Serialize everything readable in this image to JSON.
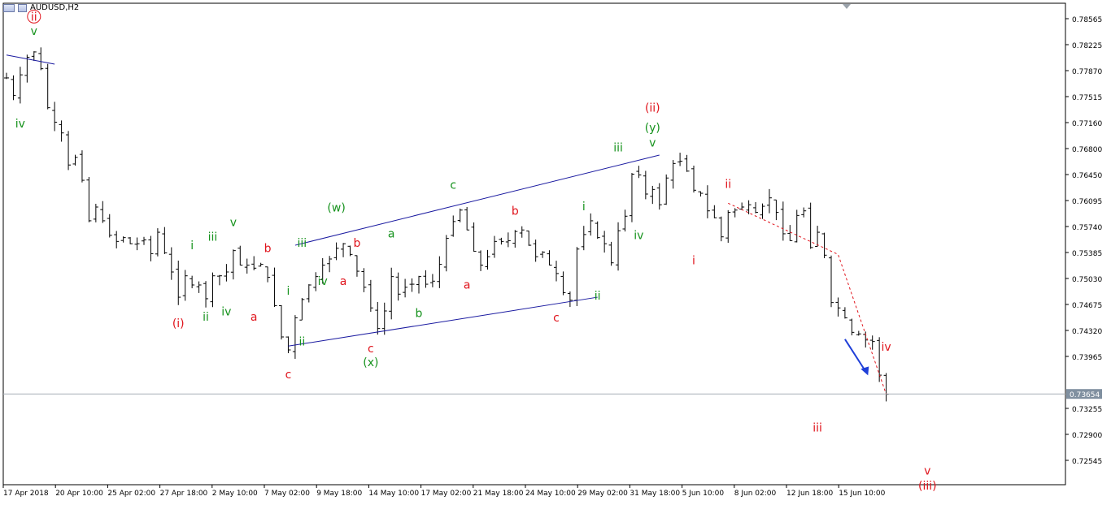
{
  "window": {
    "title": "AUDUSD,H2"
  },
  "colors": {
    "background": "#ffffff",
    "candle": "#000000",
    "trendline": "#1a1aa0",
    "label_red": "#e0141c",
    "label_green": "#15921c",
    "arrow_blue": "#1f3fd8",
    "current_price_line": "#a8b0b8",
    "price_badge_bg": "#8090a0"
  },
  "icons": [
    "chart-window-icon",
    "down-arrow-icon",
    "shift-marker-icon"
  ],
  "chart_data": {
    "type": "candlestick",
    "title": "AUDUSD,H2",
    "symbol": "AUDUSD",
    "timeframe": "H2",
    "current_price": "0.73654",
    "y_axis": {
      "range": [
        0.724,
        0.788
      ],
      "ticks": [
        "0.78565",
        "0.78225",
        "0.77870",
        "0.77515",
        "0.77160",
        "0.76800",
        "0.76450",
        "0.76095",
        "0.75740",
        "0.75385",
        "0.75030",
        "0.74675",
        "0.74320",
        "0.73965",
        "0.73255",
        "0.72900",
        "0.72545"
      ]
    },
    "x_axis": {
      "labels": [
        "17 Apr 2018",
        "20 Apr 10:00",
        "25 Apr 02:00",
        "27 Apr 18:00",
        "2 May 10:00",
        "7 May 02:00",
        "9 May 18:00",
        "14 May 10:00",
        "17 May 02:00",
        "21 May 18:00",
        "24 May 10:00",
        "29 May 02:00",
        "31 May 18:00",
        "5 Jun 10:00",
        "8 Jun 02:00",
        "12 Jun 18:00",
        "15 Jun 10:00"
      ]
    },
    "price_path": [
      0.7779,
      0.7756,
      0.7783,
      0.7806,
      0.7813,
      0.7791,
      0.774,
      0.7721,
      0.7707,
      0.7665,
      0.7675,
      0.7645,
      0.7592,
      0.761,
      0.7592,
      0.7573,
      0.7565,
      0.757,
      0.7562,
      0.7562,
      0.7567,
      0.7549,
      0.7577,
      0.755,
      0.7525,
      0.7492,
      0.752,
      0.7508,
      0.7508,
      0.749,
      0.752,
      0.752,
      0.7525,
      0.7553,
      0.7534,
      0.7534,
      0.753,
      0.7535,
      0.7518,
      0.7481,
      0.744,
      0.7423,
      0.7465,
      0.7489,
      0.7508,
      0.7519,
      0.7534,
      0.7542,
      0.7556,
      0.7562,
      0.7548,
      0.7526,
      0.7505,
      0.7478,
      0.7451,
      0.7474,
      0.7519,
      0.7496,
      0.7505,
      0.7509,
      0.7519,
      0.7509,
      0.7513,
      0.7535,
      0.7569,
      0.7591,
      0.7606,
      0.758,
      0.7552,
      0.7534,
      0.7545,
      0.7565,
      0.7565,
      0.7566,
      0.7578,
      0.758,
      0.756,
      0.7545,
      0.7551,
      0.7534,
      0.7523,
      0.7498,
      0.7488,
      0.7555,
      0.7574,
      0.7592,
      0.757,
      0.7562,
      0.7537,
      0.7579,
      0.7598,
      0.7653,
      0.7652,
      0.7627,
      0.7633,
      0.7613,
      0.7648,
      0.7667,
      0.767,
      0.7657,
      0.7632,
      0.7628,
      0.7605,
      0.7596,
      0.7571,
      0.7603,
      0.7606,
      0.761,
      0.7613,
      0.7603,
      0.7611,
      0.7622,
      0.7603,
      0.7575,
      0.7566,
      0.7599,
      0.7605,
      0.7557,
      0.7577,
      0.7547,
      0.7485,
      0.7478,
      0.7465,
      0.7446,
      0.7444,
      0.7436,
      0.7434,
      0.739,
      0.7365
    ],
    "trendlines": [
      {
        "from": [
          0,
          0.7809
        ],
        "to": [
          7,
          0.7797
        ]
      },
      {
        "from": [
          42,
          0.756
        ],
        "to": [
          95,
          0.7678
        ]
      },
      {
        "from": [
          41,
          0.7428
        ],
        "to": [
          86,
          0.7492
        ]
      }
    ],
    "projection_line": {
      "from": [
        105,
        0.7615
      ],
      "to": [
        121,
        0.7548
      ],
      "to2": [
        128,
        0.7365
      ],
      "style": "dashed"
    },
    "annotations": [
      {
        "text": "ii",
        "color": "red",
        "circled": true,
        "at": [
          4,
          0.7854
        ]
      },
      {
        "text": "v",
        "color": "green",
        "at": [
          4,
          0.7835
        ]
      },
      {
        "text": "iv",
        "color": "green",
        "at": [
          2,
          0.7714
        ]
      },
      {
        "text": "i",
        "color": "green",
        "at": [
          27,
          0.7555
        ]
      },
      {
        "text": "iii",
        "color": "green",
        "at": [
          30,
          0.7566
        ]
      },
      {
        "text": "v",
        "color": "green",
        "at": [
          33,
          0.7585
        ]
      },
      {
        "text": "ii",
        "color": "green",
        "at": [
          29,
          0.7461
        ]
      },
      {
        "text": "iv",
        "color": "green",
        "at": [
          32,
          0.7468
        ]
      },
      {
        "text": "(i)",
        "color": "red",
        "at": [
          25,
          0.7453
        ]
      },
      {
        "text": "b",
        "color": "red",
        "at": [
          38,
          0.7551
        ]
      },
      {
        "text": "a",
        "color": "red",
        "at": [
          36,
          0.7461
        ]
      },
      {
        "text": "c",
        "color": "red",
        "at": [
          41,
          0.7386
        ]
      },
      {
        "text": "i",
        "color": "green",
        "at": [
          41,
          0.7495
        ]
      },
      {
        "text": "ii",
        "color": "green",
        "at": [
          43,
          0.7429
        ]
      },
      {
        "text": "iii",
        "color": "green",
        "at": [
          43,
          0.7558
        ]
      },
      {
        "text": "(w)",
        "color": "green",
        "at": [
          48,
          0.7604
        ]
      },
      {
        "text": "iv",
        "color": "green",
        "at": [
          46,
          0.7508
        ]
      },
      {
        "text": "b",
        "color": "red",
        "at": [
          51,
          0.7558
        ]
      },
      {
        "text": "a",
        "color": "red",
        "at": [
          49,
          0.7508
        ]
      },
      {
        "text": "c",
        "color": "red",
        "at": [
          53,
          0.742
        ]
      },
      {
        "text": "(x)",
        "color": "green",
        "at": [
          53,
          0.7402
        ]
      },
      {
        "text": "a",
        "color": "green",
        "at": [
          56,
          0.757
        ]
      },
      {
        "text": "b",
        "color": "green",
        "at": [
          60,
          0.7466
        ]
      },
      {
        "text": "c",
        "color": "green",
        "at": [
          65,
          0.7634
        ]
      },
      {
        "text": "b",
        "color": "red",
        "at": [
          74,
          0.76
        ]
      },
      {
        "text": "a",
        "color": "red",
        "at": [
          67,
          0.7503
        ]
      },
      {
        "text": "c",
        "color": "red",
        "at": [
          80,
          0.746
        ]
      },
      {
        "text": "ii",
        "color": "green",
        "at": [
          86,
          0.7489
        ]
      },
      {
        "text": "i",
        "color": "green",
        "at": [
          84,
          0.7606
        ]
      },
      {
        "text": "iii",
        "color": "green",
        "at": [
          89,
          0.7683
        ]
      },
      {
        "text": "iv",
        "color": "green",
        "at": [
          92,
          0.7568
        ]
      },
      {
        "text": "(ii)",
        "color": "red",
        "at": [
          94,
          0.7735
        ]
      },
      {
        "text": "(y)",
        "color": "green",
        "at": [
          94,
          0.7709
        ]
      },
      {
        "text": "v",
        "color": "green",
        "at": [
          94,
          0.7689
        ]
      },
      {
        "text": "i",
        "color": "red",
        "at": [
          100,
          0.7535
        ]
      },
      {
        "text": "ii",
        "color": "red",
        "at": [
          105,
          0.7635
        ]
      },
      {
        "text": "iii",
        "color": "red",
        "at": [
          118,
          0.7316
        ]
      },
      {
        "text": "iv",
        "color": "red",
        "at": [
          128,
          0.7422
        ]
      },
      {
        "text": "v",
        "color": "red",
        "at": [
          134,
          0.726
        ]
      },
      {
        "text": "(iii)",
        "color": "red",
        "at": [
          134,
          0.724
        ]
      }
    ],
    "forecast_arrow": {
      "direction": "down",
      "from": [
        122,
        0.7437
      ],
      "to": [
        125,
        0.7395
      ]
    },
    "grid": false,
    "legend": "none"
  }
}
